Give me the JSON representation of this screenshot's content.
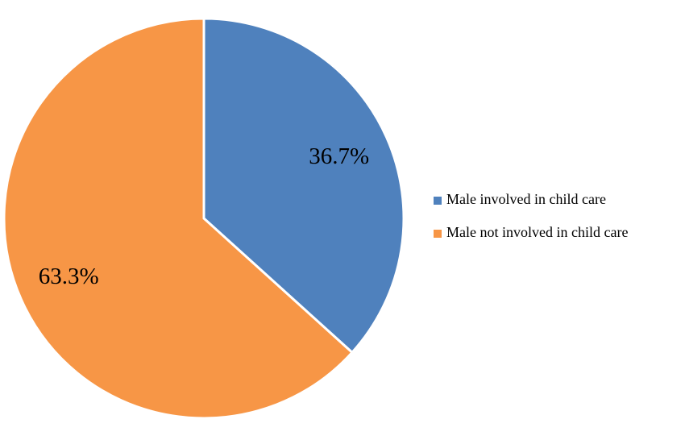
{
  "chart_data": {
    "type": "pie",
    "categories": [
      "Male involved in child care",
      "Male not involved in child care"
    ],
    "values": [
      36.7,
      63.3
    ],
    "value_labels": [
      "36.7%",
      "63.3%"
    ],
    "colors": [
      "#4f81bd",
      "#f79646"
    ],
    "legend": "right"
  }
}
